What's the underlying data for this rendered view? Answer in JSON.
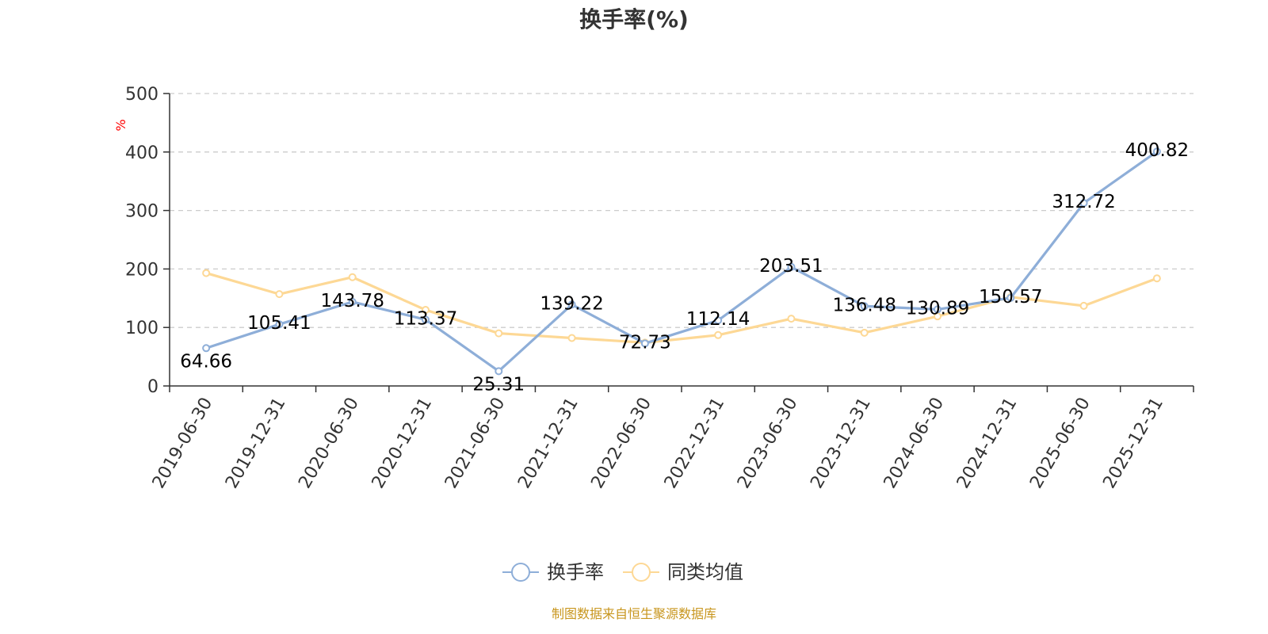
{
  "chart_data": {
    "type": "line",
    "title": "换手率(%)",
    "ylabel": "%",
    "xlabel": "",
    "ylim": [
      0,
      500
    ],
    "yticks": [
      0,
      100,
      200,
      300,
      400,
      500
    ],
    "grid": true,
    "categories": [
      "2019-06-30",
      "2019-12-31",
      "2020-06-30",
      "2020-12-31",
      "2021-06-30",
      "2021-12-31",
      "2022-06-30",
      "2022-12-31",
      "2023-06-30",
      "2023-12-31",
      "2024-06-30",
      "2024-12-31",
      "2025-06-30",
      "2025-12-31"
    ],
    "series": [
      {
        "name": "换手率",
        "color": "#8eaed8",
        "labels_shown": true,
        "values": [
          64.66,
          105.41,
          143.78,
          113.37,
          25.31,
          139.22,
          72.73,
          112.14,
          203.51,
          136.48,
          130.89,
          150.57,
          312.72,
          400.82
        ]
      },
      {
        "name": "同类均值",
        "color": "#fdd895",
        "labels_shown": false,
        "values": [
          193,
          157,
          186,
          130,
          90,
          82,
          74,
          87,
          115,
          91,
          119,
          152,
          137,
          184
        ]
      }
    ],
    "legend_position": "bottom-center"
  },
  "footer": {
    "source": "制图数据来自恒生聚源数据库",
    "source_color": "#c8961e"
  }
}
